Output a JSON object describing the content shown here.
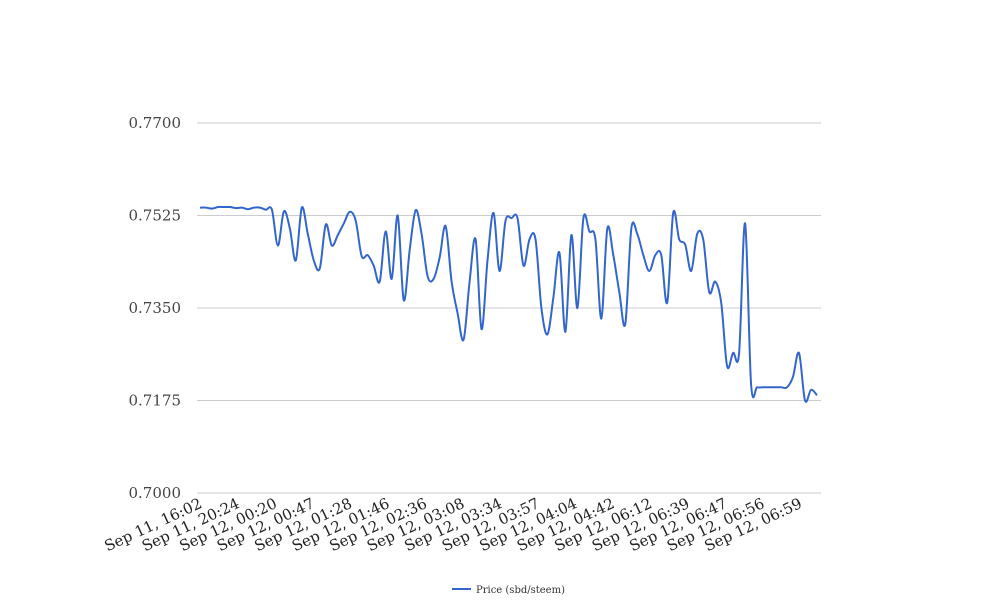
{
  "chart_data": {
    "type": "line",
    "title": "",
    "xlabel": "",
    "ylabel": "",
    "ylim": [
      0.7,
      0.77
    ],
    "yticks": [
      "0.7700",
      "0.7525",
      "0.7350",
      "0.7175",
      "0.7000"
    ],
    "xtick_labels": [
      "Sep 11, 16:02",
      "Sep 11, 20:24",
      "Sep 12, 00:20",
      "Sep 12, 00:47",
      "Sep 12, 01:28",
      "Sep 12, 01:46",
      "Sep 12, 02:36",
      "Sep 12, 03:08",
      "Sep 12, 03:34",
      "Sep 12, 03:57",
      "Sep 12, 04:04",
      "Sep 12, 04:42",
      "Sep 12, 06:12",
      "Sep 12, 06:39",
      "Sep 12, 06:47",
      "Sep 12, 06:56",
      "Sep 12, 06:59"
    ],
    "grid": true,
    "legend_position": "bottom",
    "series": [
      {
        "name": "Price (sbd/steem)",
        "color": "#3366cc",
        "values": [
          0.754,
          0.754,
          0.7538,
          0.7541,
          0.7541,
          0.7541,
          0.7539,
          0.754,
          0.7537,
          0.754,
          0.754,
          0.7536,
          0.7536,
          0.7468,
          0.7533,
          0.75,
          0.744,
          0.754,
          0.749,
          0.744,
          0.7425,
          0.7508,
          0.7468,
          0.7488,
          0.751,
          0.7532,
          0.7515,
          0.7448,
          0.745,
          0.743,
          0.74,
          0.7495,
          0.7405,
          0.7525,
          0.7365,
          0.746,
          0.7535,
          0.749,
          0.741,
          0.7405,
          0.7445,
          0.7505,
          0.74,
          0.734,
          0.729,
          0.74,
          0.748,
          0.731,
          0.744,
          0.753,
          0.742,
          0.7515,
          0.752,
          0.752,
          0.743,
          0.748,
          0.748,
          0.735,
          0.73,
          0.737,
          0.7455,
          0.7305,
          0.7488,
          0.735,
          0.752,
          0.7495,
          0.748,
          0.733,
          0.75,
          0.745,
          0.738,
          0.732,
          0.75,
          0.749,
          0.745,
          0.742,
          0.745,
          0.745,
          0.736,
          0.753,
          0.748,
          0.747,
          0.742,
          0.749,
          0.748,
          0.738,
          0.74,
          0.736,
          0.724,
          0.7265,
          0.7265,
          0.751,
          0.7205,
          0.72,
          0.72,
          0.72,
          0.72,
          0.72,
          0.72,
          0.722,
          0.7265,
          0.7175,
          0.7195,
          0.7185
        ]
      }
    ]
  }
}
